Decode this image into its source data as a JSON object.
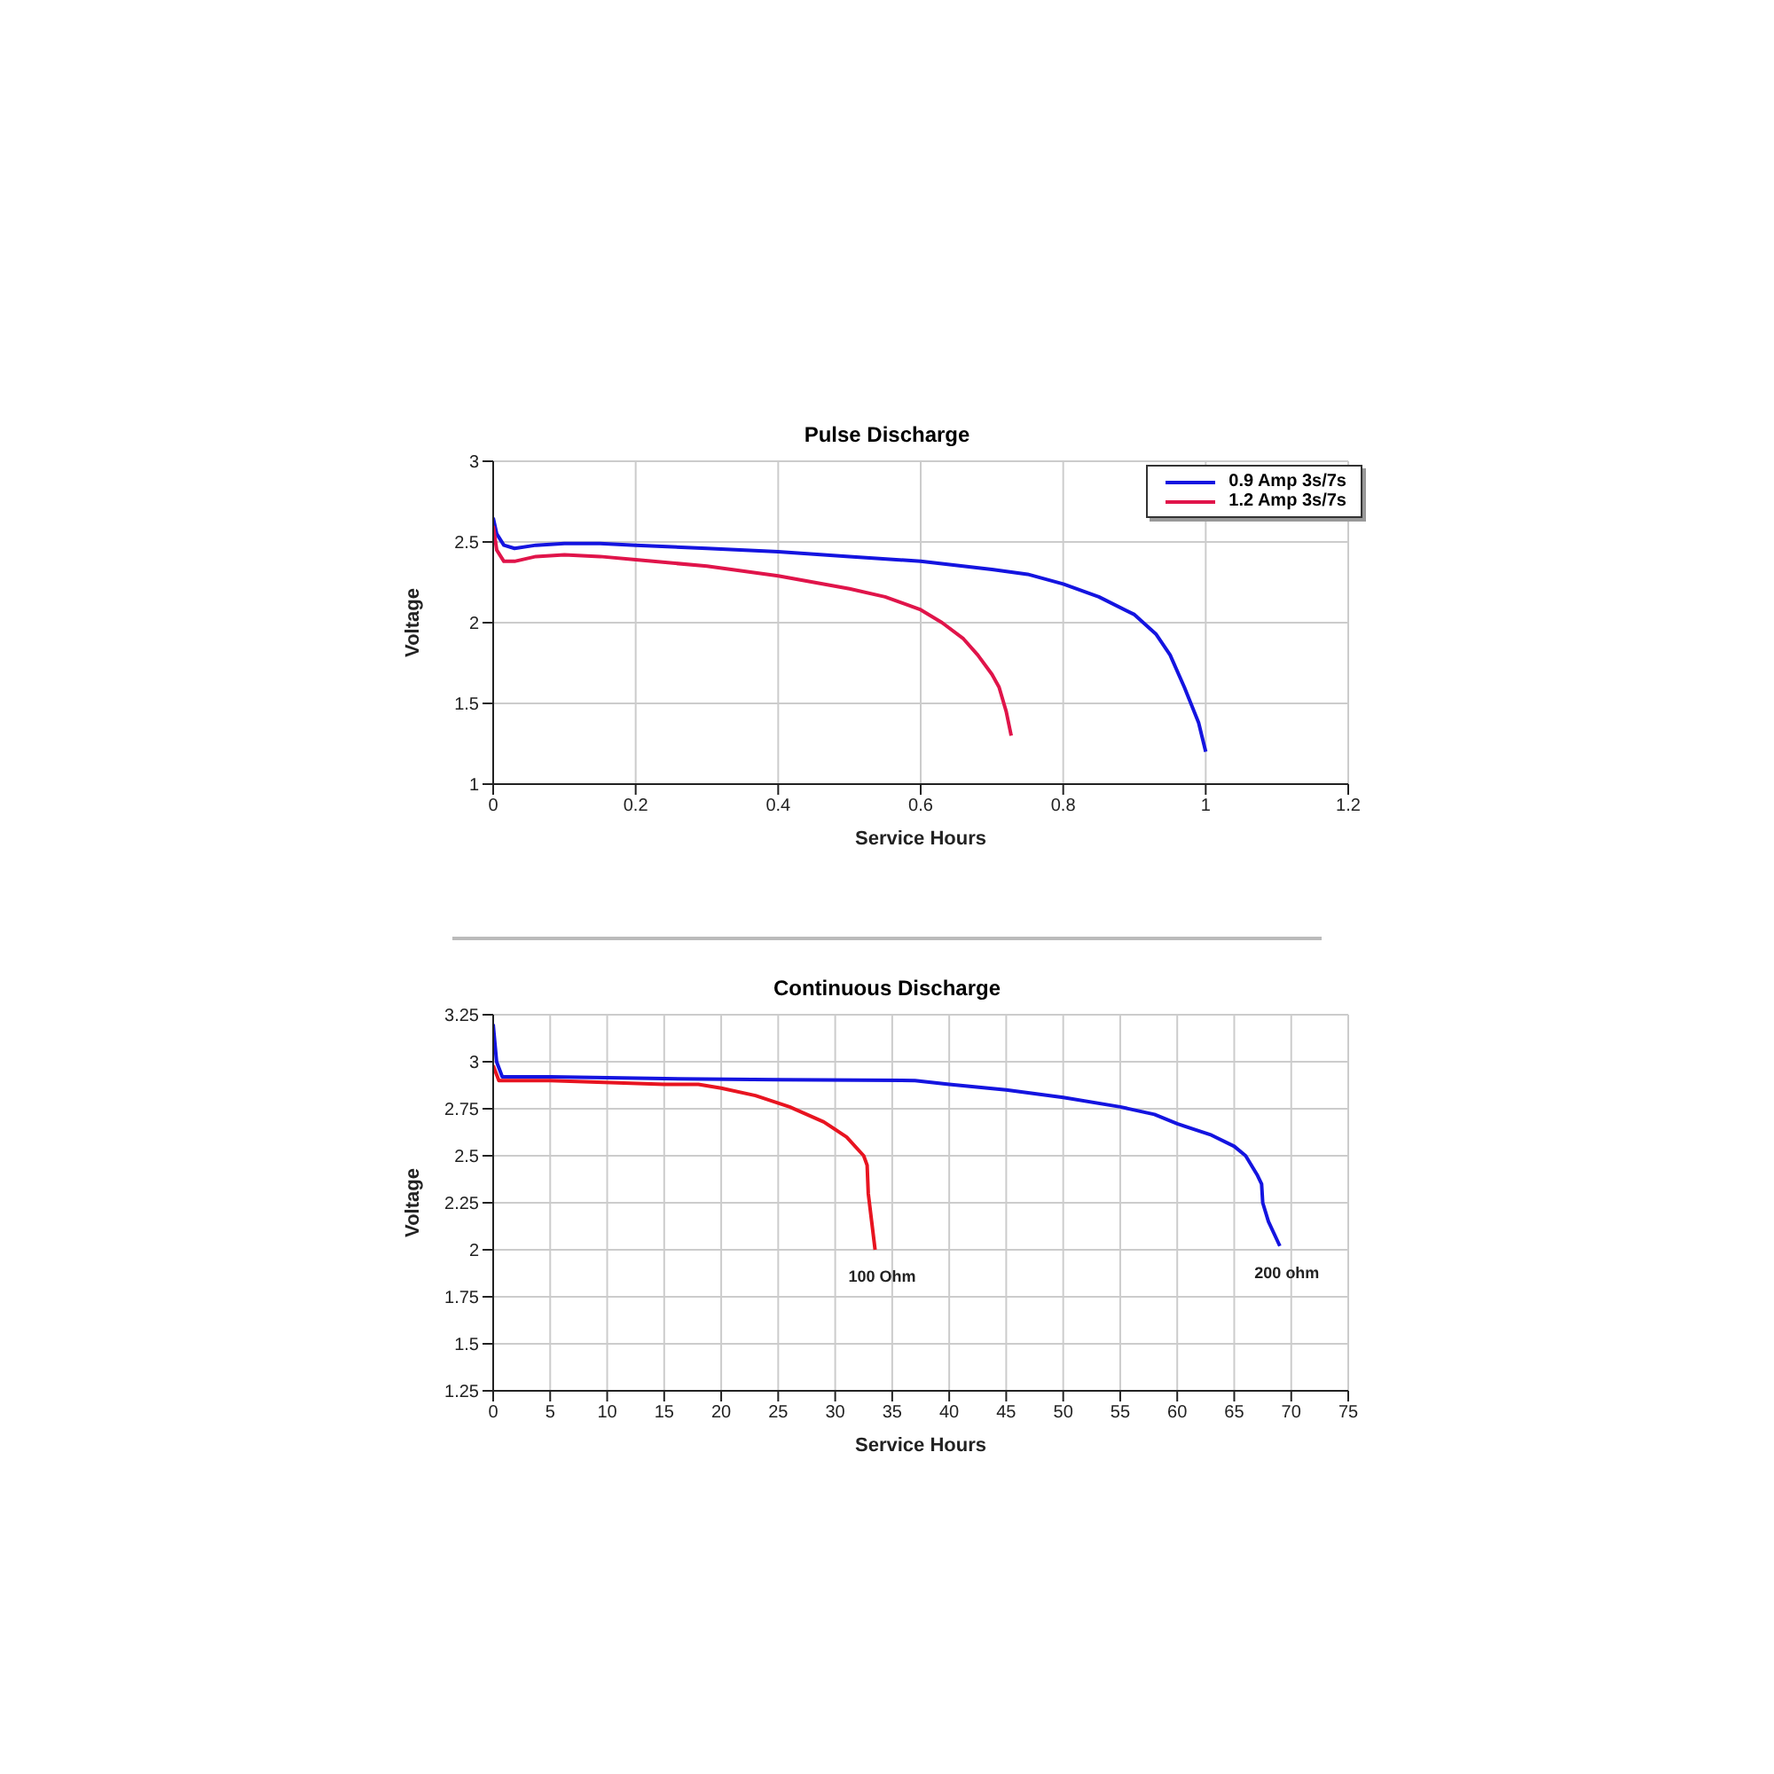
{
  "chart_data": [
    {
      "type": "line",
      "title": "Pulse Discharge",
      "xlabel": "Service Hours",
      "ylabel": "Voltage",
      "xlim": [
        0,
        1.2
      ],
      "xticks": [
        0,
        0.2,
        0.4,
        0.6,
        0.8,
        1,
        1.2
      ],
      "ylim": [
        1,
        3
      ],
      "yticks": [
        1,
        1.5,
        2,
        2.5,
        3
      ],
      "grid": true,
      "legend": "top right",
      "series": [
        {
          "name": "0.9 Amp 3s/7s",
          "color": "#1414e0",
          "x": [
            0,
            0.005,
            0.015,
            0.03,
            0.06,
            0.1,
            0.15,
            0.2,
            0.3,
            0.4,
            0.5,
            0.6,
            0.7,
            0.75,
            0.8,
            0.85,
            0.9,
            0.93,
            0.95,
            0.97,
            0.99,
            1.0
          ],
          "values": [
            2.65,
            2.55,
            2.48,
            2.46,
            2.48,
            2.49,
            2.49,
            2.48,
            2.46,
            2.44,
            2.41,
            2.38,
            2.33,
            2.3,
            2.24,
            2.16,
            2.05,
            1.93,
            1.8,
            1.6,
            1.38,
            1.2
          ]
        },
        {
          "name": "1.2 Amp 3s/7s",
          "color": "#e0144a",
          "x": [
            0,
            0.005,
            0.015,
            0.03,
            0.06,
            0.1,
            0.15,
            0.2,
            0.3,
            0.4,
            0.5,
            0.55,
            0.6,
            0.63,
            0.66,
            0.68,
            0.7,
            0.71,
            0.72,
            0.727
          ],
          "values": [
            2.6,
            2.45,
            2.38,
            2.38,
            2.41,
            2.42,
            2.41,
            2.39,
            2.35,
            2.29,
            2.21,
            2.16,
            2.08,
            2.0,
            1.9,
            1.8,
            1.68,
            1.6,
            1.45,
            1.3
          ]
        }
      ]
    },
    {
      "type": "line",
      "title": "Continuous Discharge",
      "xlabel": "Service Hours",
      "ylabel": "Voltage",
      "xlim": [
        0,
        75
      ],
      "xticks": [
        0,
        5,
        10,
        15,
        20,
        25,
        30,
        35,
        40,
        45,
        50,
        55,
        60,
        65,
        70,
        75
      ],
      "ylim": [
        1.25,
        3.25
      ],
      "yticks": [
        1.25,
        1.5,
        1.75,
        2,
        2.25,
        2.5,
        2.75,
        3,
        3.25
      ],
      "grid": true,
      "series": [
        {
          "name": "100 Ohm",
          "color": "#e81420",
          "x": [
            0,
            0.5,
            5,
            15,
            18,
            20,
            23,
            26,
            29,
            31,
            32.5,
            32.8,
            32.9,
            33.2,
            33.5
          ],
          "values": [
            2.98,
            2.9,
            2.9,
            2.88,
            2.88,
            2.86,
            2.82,
            2.76,
            2.68,
            2.6,
            2.5,
            2.45,
            2.3,
            2.15,
            2.0
          ]
        },
        {
          "name": "200 ohm",
          "color": "#1414e0",
          "x": [
            0,
            0.3,
            0.8,
            5,
            15,
            25,
            37,
            40,
            45,
            50,
            55,
            58,
            60,
            63,
            65,
            66,
            67,
            67.4,
            67.5,
            68,
            69
          ],
          "values": [
            3.2,
            3.0,
            2.92,
            2.92,
            2.91,
            2.905,
            2.9,
            2.88,
            2.85,
            2.81,
            2.76,
            2.72,
            2.67,
            2.61,
            2.55,
            2.5,
            2.4,
            2.35,
            2.25,
            2.15,
            2.02
          ]
        }
      ]
    }
  ]
}
